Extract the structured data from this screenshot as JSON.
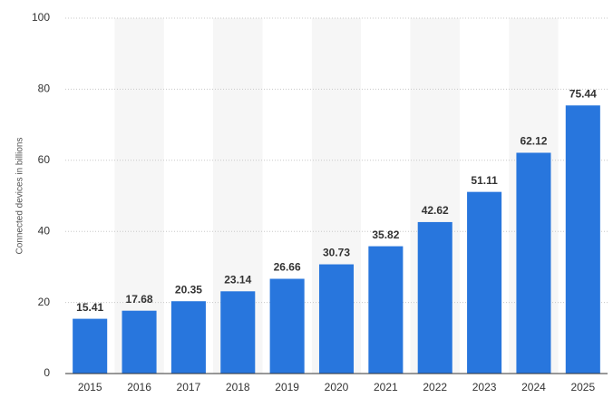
{
  "chart_data": {
    "type": "bar",
    "y_label": "Connected devices in billions",
    "categories": [
      "2015",
      "2016",
      "2017",
      "2018",
      "2019",
      "2020",
      "2021",
      "2022",
      "2023",
      "2024",
      "2025"
    ],
    "values": [
      15.41,
      17.68,
      20.35,
      23.14,
      26.66,
      30.73,
      35.82,
      42.62,
      51.11,
      62.12,
      75.44
    ],
    "color": "#2876dd",
    "ylim": [
      0,
      100
    ],
    "yticks": [
      0,
      20,
      40,
      60,
      80,
      100
    ],
    "grid": true,
    "data_labels": true
  }
}
